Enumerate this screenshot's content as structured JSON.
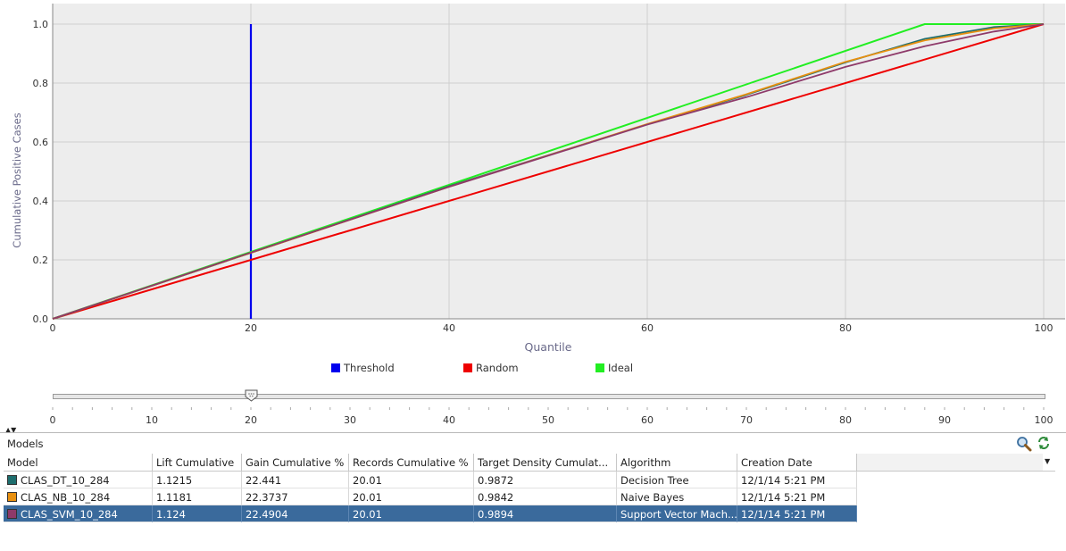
{
  "chart_data": {
    "type": "line",
    "xlabel": "Quantile",
    "ylabel": "Cumulative Positive Cases",
    "xlim": [
      0,
      100
    ],
    "ylim": [
      0,
      1.0
    ],
    "x_ticks": [
      "0",
      "20",
      "40",
      "60",
      "80",
      "100"
    ],
    "y_ticks": [
      "0.0",
      "0.2",
      "0.4",
      "0.6",
      "0.8",
      "1.0"
    ],
    "grid": true,
    "legend_position": "bottom-center",
    "threshold": {
      "name": "Threshold",
      "x": 20,
      "color": "#0000ee"
    },
    "series": [
      {
        "name": "Random",
        "color": "#ee0000",
        "x": [
          0,
          100
        ],
        "y": [
          0,
          1.0
        ]
      },
      {
        "name": "Ideal",
        "color": "#22ee22",
        "x": [
          0,
          88,
          100
        ],
        "y": [
          0,
          1.0,
          1.0
        ]
      },
      {
        "name": "CLAS_DT_10_284",
        "color": "#1e6e6e",
        "x": [
          0,
          20,
          40,
          60,
          70,
          80,
          88,
          95,
          100
        ],
        "y": [
          0,
          0.224,
          0.45,
          0.66,
          0.76,
          0.87,
          0.95,
          0.99,
          1.0
        ]
      },
      {
        "name": "CLAS_NB_10_284",
        "color": "#e89010",
        "x": [
          0,
          20,
          40,
          60,
          70,
          80,
          88,
          95,
          100
        ],
        "y": [
          0,
          0.224,
          0.448,
          0.661,
          0.762,
          0.872,
          0.945,
          0.985,
          1.0
        ]
      },
      {
        "name": "CLAS_SVM_10_284",
        "color": "#8e3a6a",
        "x": [
          0,
          20,
          40,
          60,
          70,
          80,
          88,
          95,
          100
        ],
        "y": [
          0,
          0.225,
          0.448,
          0.659,
          0.752,
          0.855,
          0.925,
          0.975,
          1.0
        ]
      }
    ]
  },
  "legend": [
    {
      "label": "Threshold",
      "color": "#0000ee"
    },
    {
      "label": "Random",
      "color": "#ee0000"
    },
    {
      "label": "Ideal",
      "color": "#22ee22"
    }
  ],
  "slider": {
    "value": 20,
    "min": 0,
    "max": 100,
    "labels": [
      "0",
      "10",
      "20",
      "30",
      "40",
      "50",
      "60",
      "70",
      "80",
      "90",
      "100"
    ]
  },
  "models_panel": {
    "title": "Models",
    "columns": [
      "Model",
      "Lift Cumulative",
      "Gain Cumulative %",
      "Records Cumulative %",
      "Target Density Cumulat...",
      "Algorithm",
      "Creation Date"
    ],
    "rows": [
      {
        "model": "CLAS_DT_10_284",
        "color": "#1e6e6e",
        "lift": "1.1215",
        "gain": "22.441",
        "records": "20.01",
        "density": "0.9872",
        "algorithm": "Decision Tree",
        "date": "12/1/14 5:21 PM",
        "selected": false
      },
      {
        "model": "CLAS_NB_10_284",
        "color": "#e89010",
        "lift": "1.1181",
        "gain": "22.3737",
        "records": "20.01",
        "density": "0.9842",
        "algorithm": "Naive Bayes",
        "date": "12/1/14 5:21 PM",
        "selected": false
      },
      {
        "model": "CLAS_SVM_10_284",
        "color": "#8e3a6a",
        "lift": "1.124",
        "gain": "22.4904",
        "records": "20.01",
        "density": "0.9894",
        "algorithm": "Support Vector Mach...",
        "date": "12/1/14 5:21 PM",
        "selected": true
      }
    ]
  }
}
